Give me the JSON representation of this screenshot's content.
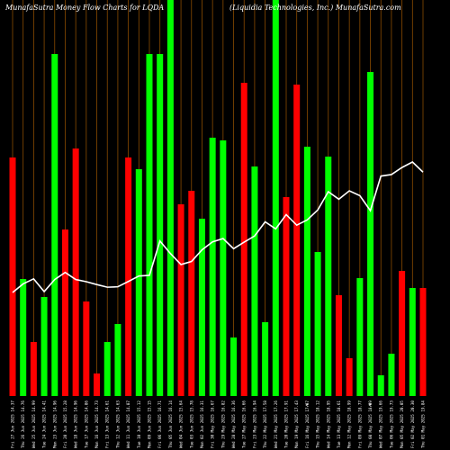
{
  "chart_data": {
    "type": "bar",
    "title_left": "MunafaSutra  Money Flow  Charts for LQDA",
    "title_right": "(Liquidia  Technologies,  Inc.) MunafaSutra.com",
    "xlabel": "",
    "ylabel": "",
    "grid": "vertical",
    "legend": "none",
    "colors": {
      "background": "#000000",
      "up": "#00ff00",
      "down": "#ff0000",
      "grid": "#8a4b00",
      "line": "#ffffff"
    },
    "categories": [
      "Fri 27 Jun 2025 14.37",
      "Thu 26 Jun 2025 14.76",
      "Wed 25 Jun 2025 14.99",
      "Tue 24 Jun 2025 14.41",
      "Mon 23 Jun 2025 14.96",
      "Fri 20 Jun 2025 15.28",
      "Wed 18 Jun 2025 14.96",
      "Tue 17 Jun 2025 14.86",
      "Mon 16 Jun 2025 14.73",
      "Fri 13 Jun 2025 14.61",
      "Thu 12 Jun 2025 14.63",
      "Wed 11 Jun 2025 14.87",
      "Tue 10 Jun 2025 15.12",
      "Mon 09 Jun 2025 15.15",
      "Fri 06 Jun 2025 16.71",
      "Thu 05 Jun 2025 16.14",
      "Wed 04 Jun 2025 15.64",
      "Tue 03 Jun 2025 15.78",
      "Mon 02 Jun 2025 16.31",
      "Fri 30 May 2025 16.67",
      "Thu 29 May 2025 16.82",
      "Wed 28 May 2025 16.36",
      "Tue 27 May 2025 16.66",
      "Fri 23 May 2025 16.94",
      "Thu 22 May 2025 17.58",
      "Wed 21 May 2025 17.26",
      "Tue 20 May 2025 17.91",
      "Mon 19 May 2025 17.43",
      "Fri 16 May 2025 17.67",
      "Thu 15 May 2025 18.12",
      "Wed 14 May 2025 18.95",
      "Tue 13 May 2025 18.61",
      "Mon 12 May 2025 18.99",
      "Fri 09 May 2025 18.77",
      "Thu 08 May 2025 18.09",
      "Wed 07 May 2025 19.66",
      "Tue 06 May 2025 19.73",
      "Mon 05 May 2025 20.05",
      "Fri 02 May 2025 20.30",
      "Thu 01 May 2025 19.84"
    ],
    "values": [
      265,
      130,
      60,
      110,
      380,
      185,
      275,
      105,
      25,
      60,
      80,
      265,
      252,
      380,
      380,
      450,
      213,
      228,
      197,
      287,
      284,
      65,
      348,
      255,
      82,
      450,
      221,
      346,
      277,
      160,
      266,
      112,
      42,
      131,
      360,
      23,
      47,
      139,
      120,
      120
    ],
    "directions": [
      "down",
      "up",
      "down",
      "up",
      "up",
      "down",
      "down",
      "down",
      "down",
      "up",
      "up",
      "down",
      "up",
      "up",
      "up",
      "up",
      "down",
      "down",
      "up",
      "up",
      "up",
      "up",
      "down",
      "up",
      "up",
      "up",
      "down",
      "down",
      "up",
      "up",
      "up",
      "down",
      "down",
      "up",
      "up",
      "up",
      "up",
      "down",
      "up",
      "down"
    ],
    "price": [
      14.37,
      14.76,
      14.99,
      14.41,
      14.96,
      15.28,
      14.96,
      14.86,
      14.73,
      14.61,
      14.63,
      14.87,
      15.12,
      15.15,
      16.71,
      16.14,
      15.64,
      15.78,
      16.31,
      16.67,
      16.82,
      16.36,
      16.66,
      16.94,
      17.58,
      17.26,
      17.91,
      17.43,
      17.67,
      18.12,
      18.95,
      18.61,
      18.99,
      18.77,
      18.09,
      19.66,
      19.73,
      20.05,
      20.3,
      19.84
    ],
    "markers": [
      {
        "index": 28,
        "text": "₹"
      },
      {
        "index": 34,
        "text": "₹"
      }
    ]
  }
}
